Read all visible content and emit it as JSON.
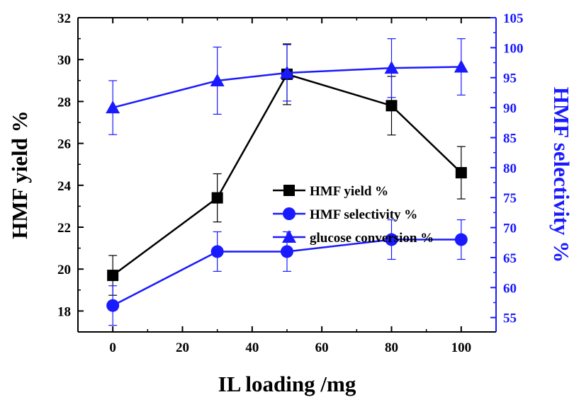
{
  "chart_data": {
    "type": "line",
    "x": [
      0,
      30,
      50,
      80,
      100
    ],
    "xlabel": "IL loading /mg",
    "xlim": [
      -10,
      110
    ],
    "xticks": [
      0,
      20,
      40,
      60,
      80,
      100
    ],
    "ylabel_left": "HMF yield %",
    "ylim_left": [
      17,
      32
    ],
    "yticks_left": [
      18,
      20,
      22,
      24,
      26,
      28,
      30,
      32
    ],
    "ylabel_right": "HMF selectivity %",
    "ylim_right": [
      52.6,
      105
    ],
    "yticks_right": [
      55,
      60,
      65,
      70,
      75,
      80,
      85,
      90,
      95,
      100,
      105
    ],
    "legend_position": "center-right",
    "grid": false,
    "series": [
      {
        "name": "HMF yield %",
        "axis": "left",
        "marker": "square",
        "color": "#000000",
        "values": [
          19.7,
          23.4,
          29.3,
          27.8,
          24.6
        ],
        "errors": [
          0.95,
          1.15,
          1.45,
          1.4,
          1.25
        ]
      },
      {
        "name": "HMF selectivity %",
        "axis": "right",
        "marker": "circle",
        "color": "#1a1aff",
        "values": [
          57.0,
          66.0,
          66.0,
          68.0,
          68.0
        ],
        "errors": [
          3.3,
          3.3,
          3.3,
          3.3,
          3.3
        ]
      },
      {
        "name": "glucose conversion %",
        "axis": "right",
        "marker": "triangle",
        "color": "#1a1aff",
        "values": [
          90.0,
          94.5,
          95.8,
          96.6,
          96.8
        ],
        "errors": [
          4.5,
          5.6,
          4.7,
          4.9,
          4.7
        ]
      }
    ]
  }
}
